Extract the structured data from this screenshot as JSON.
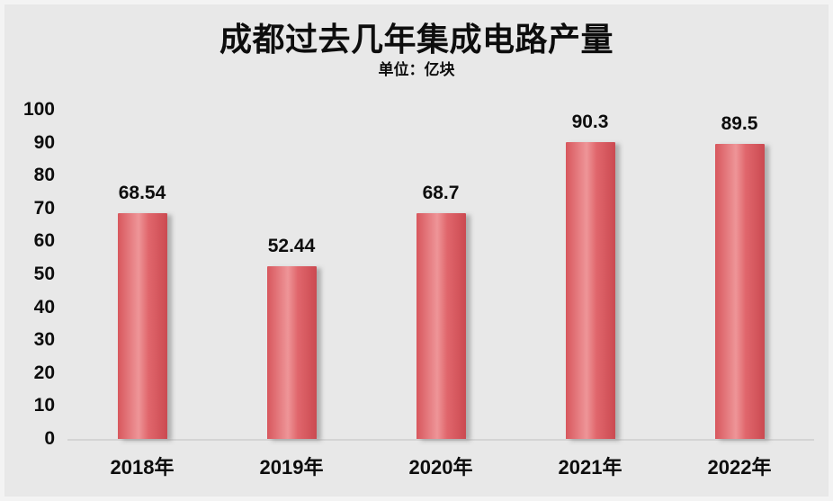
{
  "panel": {
    "outer_background": "#f3f3f3",
    "background": "#e8e8e8"
  },
  "chart_data": {
    "type": "bar",
    "title": "成都过去几年集成电路产量",
    "subtitle": "单位：亿块",
    "categories": [
      "2018年",
      "2019年",
      "2020年",
      "2021年",
      "2022年"
    ],
    "values": [
      68.54,
      52.44,
      68.7,
      90.3,
      89.5
    ],
    "value_labels": [
      "68.54",
      "52.44",
      "68.7",
      "90.3",
      "89.5"
    ],
    "xlabel": "",
    "ylabel": "",
    "ylim": [
      0,
      100
    ],
    "yticks": [
      100,
      90,
      80,
      70,
      60,
      50,
      40,
      30,
      20,
      10,
      0
    ],
    "grid": false,
    "legend": "none",
    "colors": {
      "bar_gradient_left": "#d8575d",
      "bar_gradient_mid": "#ee9598",
      "bar_gradient_right": "#cb4a51",
      "axis_line": "#d4d4d4",
      "text": "#0d0d0d"
    }
  }
}
